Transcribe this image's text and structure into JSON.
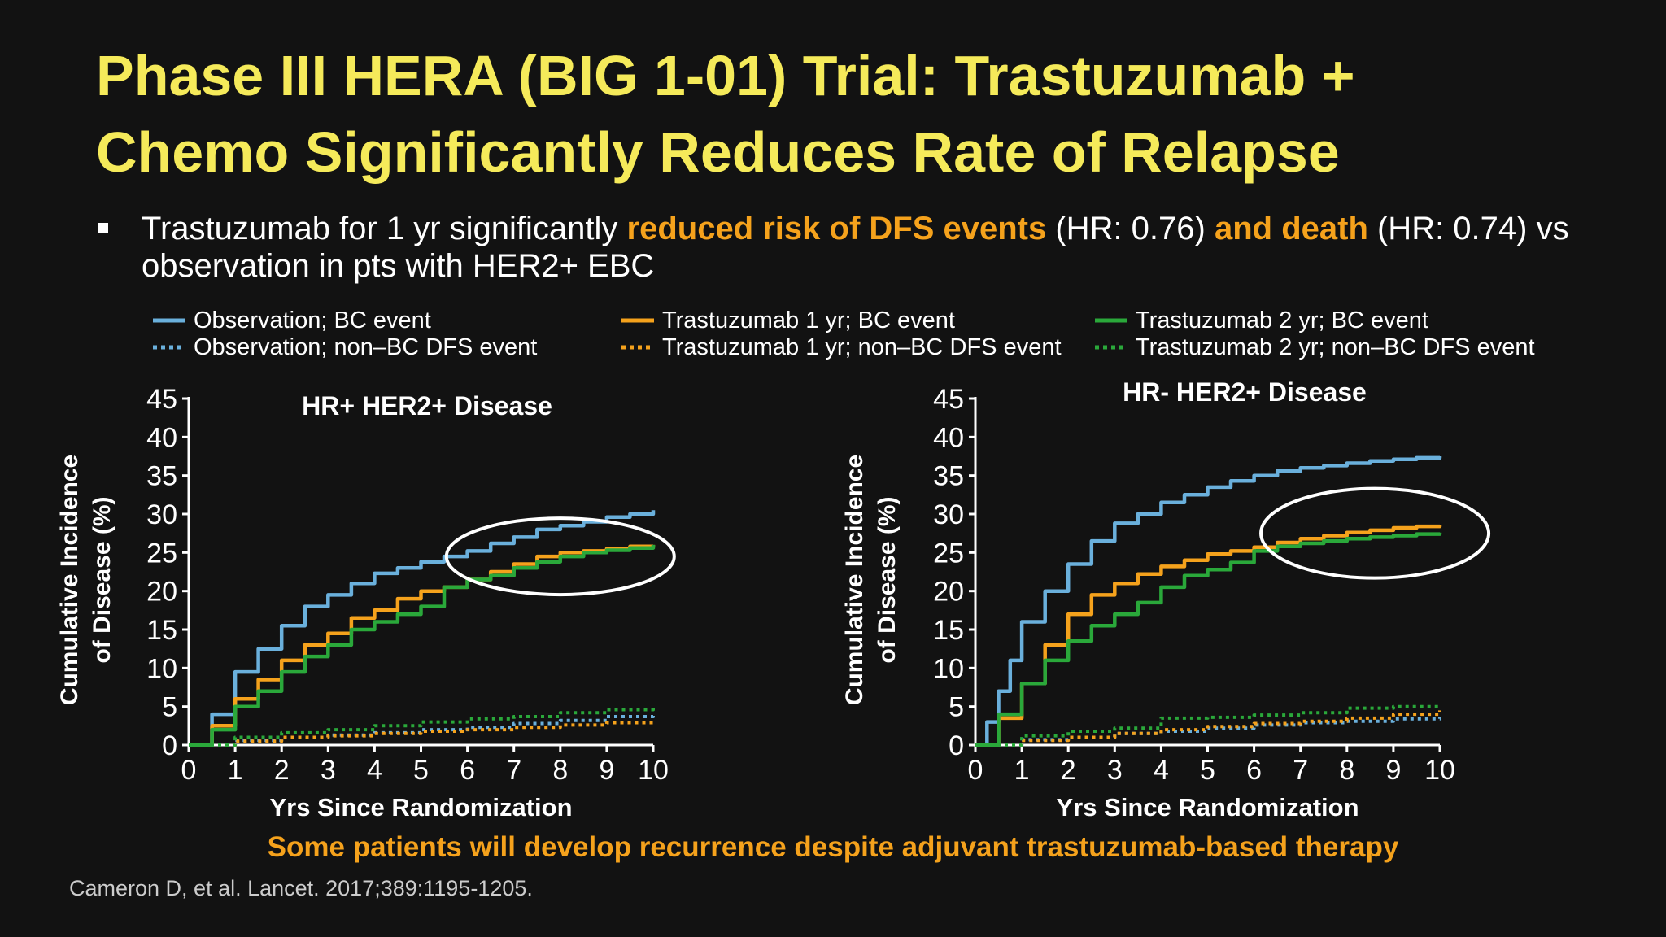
{
  "slide": {
    "title_line1": "Phase III HERA (BIG 1-01) Trial: Trastuzumab +",
    "title_line2": "Chemo Significantly Reduces Rate of Relapse",
    "bullet": {
      "part1": "Trastuzumab for 1 yr significantly ",
      "highlight1": "reduced risk of DFS events",
      "part2": " (HR: 0.76) ",
      "highlight2": "and death",
      "part3": " (HR: 0.74) vs observation in pts with HER2+ EBC"
    },
    "takeaway": "Some patients will develop recurrence despite adjuvant trastuzumab-based therapy",
    "citation": "Cameron D, et al. Lancet. 2017;389:1195-1205.",
    "colors": {
      "title": "#f5ea5a",
      "highlight": "#f5a21c",
      "observation": "#6ab0dc",
      "trastuzumab_1yr": "#f5a21c",
      "trastuzumab_2yr": "#2aa83a",
      "background": "#121212"
    }
  },
  "legend": [
    {
      "label": "Observation; BC event",
      "color": "#6ab0dc",
      "style": "solid"
    },
    {
      "label": "Observation; non–BC DFS event",
      "color": "#6ab0dc",
      "style": "dotted"
    },
    {
      "label": "Trastuzumab 1 yr; BC event",
      "color": "#f5a21c",
      "style": "solid"
    },
    {
      "label": "Trastuzumab 1 yr; non–BC DFS event",
      "color": "#f5a21c",
      "style": "dotted"
    },
    {
      "label": "Trastuzumab 2 yr; BC event",
      "color": "#2aa83a",
      "style": "solid"
    },
    {
      "label": "Trastuzumab 2 yr; non–BC DFS event",
      "color": "#2aa83a",
      "style": "dotted"
    }
  ],
  "chart_data": [
    {
      "type": "line",
      "title": "HR+ HER2+ Disease",
      "xlabel": "Yrs Since Randomization",
      "ylabel_line1": "Cumulative Incidence",
      "ylabel_line2": "of Disease (%)",
      "xlim": [
        0,
        10
      ],
      "ylim": [
        0,
        45
      ],
      "xticks": [
        0,
        1,
        2,
        3,
        4,
        5,
        6,
        7,
        8,
        9,
        10
      ],
      "yticks": [
        0,
        5,
        10,
        15,
        20,
        25,
        30,
        35,
        40,
        45
      ],
      "grid": false,
      "highlight_ellipse": {
        "x_center": 8.0,
        "y_center": 24.5
      },
      "series": [
        {
          "name": "Observation; BC event",
          "color": "#6ab0dc",
          "style": "solid",
          "x": [
            0,
            0.5,
            1,
            1.5,
            2,
            2.5,
            3,
            3.5,
            4,
            4.5,
            5,
            5.5,
            6,
            6.5,
            7,
            7.5,
            8,
            8.5,
            9,
            9.5,
            10
          ],
          "y": [
            0,
            4,
            9.5,
            12.5,
            15.5,
            18,
            19.5,
            21,
            22.3,
            23,
            23.8,
            24.5,
            25.2,
            26.2,
            27,
            28,
            28.5,
            29,
            29.6,
            30,
            30.5
          ]
        },
        {
          "name": "Trastuzumab 1 yr; BC event",
          "color": "#f5a21c",
          "style": "solid",
          "x": [
            0,
            0.5,
            1,
            1.5,
            2,
            2.5,
            3,
            3.5,
            4,
            4.5,
            5,
            5.5,
            6,
            6.5,
            7,
            7.5,
            8,
            8.5,
            9,
            9.5,
            10
          ],
          "y": [
            0,
            2.5,
            6,
            8.5,
            11,
            13,
            14.5,
            16.5,
            17.5,
            19,
            20,
            20.5,
            21.5,
            22.5,
            23.5,
            24.5,
            25,
            25.2,
            25.5,
            25.8,
            26
          ]
        },
        {
          "name": "Trastuzumab 2 yr; BC event",
          "color": "#2aa83a",
          "style": "solid",
          "x": [
            0,
            0.5,
            1,
            1.5,
            2,
            2.5,
            3,
            3.5,
            4,
            4.5,
            5,
            5.5,
            6,
            6.5,
            7,
            7.5,
            8,
            8.5,
            9,
            9.5,
            10
          ],
          "y": [
            0,
            2,
            5,
            7,
            9.5,
            11.5,
            13,
            15,
            16,
            17,
            18,
            20.5,
            21.5,
            22,
            23,
            23.8,
            24.5,
            25,
            25.3,
            25.6,
            26
          ]
        },
        {
          "name": "Observation; non–BC DFS event",
          "color": "#6ab0dc",
          "style": "dotted",
          "x": [
            0,
            1,
            2,
            3,
            4,
            5,
            6,
            7,
            8,
            9,
            10
          ],
          "y": [
            0,
            0.6,
            1,
            1.3,
            1.6,
            2,
            2.3,
            2.8,
            3.2,
            3.7,
            4.2
          ]
        },
        {
          "name": "Trastuzumab 1 yr; non–BC DFS event",
          "color": "#f5a21c",
          "style": "dotted",
          "x": [
            0,
            1,
            2,
            3,
            4,
            5,
            6,
            7,
            8,
            9,
            10
          ],
          "y": [
            0,
            0.5,
            1,
            1.2,
            1.5,
            1.8,
            2,
            2.3,
            2.6,
            2.9,
            3.2
          ]
        },
        {
          "name": "Trastuzumab 2 yr; non–BC DFS event",
          "color": "#2aa83a",
          "style": "dotted",
          "x": [
            0,
            1,
            2,
            3,
            4,
            5,
            6,
            7,
            8,
            9,
            10
          ],
          "y": [
            0,
            1,
            1.6,
            2,
            2.5,
            3,
            3.4,
            3.7,
            4.2,
            4.6,
            5
          ]
        }
      ]
    },
    {
      "type": "line",
      "title": "HR- HER2+ Disease",
      "xlabel": "Yrs Since Randomization",
      "ylabel_line1": "Cumulative Incidence",
      "ylabel_line2": "of Disease (%)",
      "xlim": [
        0,
        10
      ],
      "ylim": [
        0,
        45
      ],
      "xticks": [
        0,
        1,
        2,
        3,
        4,
        5,
        6,
        7,
        8,
        9,
        10
      ],
      "yticks": [
        0,
        5,
        10,
        15,
        20,
        25,
        30,
        35,
        40,
        45
      ],
      "grid": false,
      "highlight_ellipse": {
        "x_center": 8.6,
        "y_center": 27.5
      },
      "series": [
        {
          "name": "Observation; BC event",
          "color": "#6ab0dc",
          "style": "solid",
          "x": [
            0,
            0.25,
            0.5,
            0.75,
            1,
            1.5,
            2,
            2.5,
            3,
            3.5,
            4,
            4.5,
            5,
            5.5,
            6,
            6.5,
            7,
            7.5,
            8,
            8.5,
            9,
            9.5,
            10
          ],
          "y": [
            0,
            3,
            7,
            11,
            16,
            20,
            23.5,
            26.5,
            28.8,
            30,
            31.5,
            32.5,
            33.5,
            34.3,
            35,
            35.6,
            36,
            36.3,
            36.6,
            36.9,
            37.1,
            37.3,
            37.5
          ]
        },
        {
          "name": "Trastuzumab 1 yr; BC event",
          "color": "#f5a21c",
          "style": "solid",
          "x": [
            0,
            0.5,
            1,
            1.5,
            2,
            2.5,
            3,
            3.5,
            4,
            4.5,
            5,
            5.5,
            6,
            6.5,
            7,
            7.5,
            8,
            8.5,
            9,
            9.5,
            10
          ],
          "y": [
            0,
            3.5,
            8,
            13,
            17,
            19.5,
            21,
            22.2,
            23.2,
            24,
            24.8,
            25.2,
            25.7,
            26.3,
            26.8,
            27.2,
            27.6,
            27.9,
            28.2,
            28.4,
            28.6
          ]
        },
        {
          "name": "Trastuzumab 2 yr; BC event",
          "color": "#2aa83a",
          "style": "solid",
          "x": [
            0,
            0.5,
            1,
            1.5,
            2,
            2.5,
            3,
            3.5,
            4,
            4.5,
            5,
            5.5,
            6,
            6.5,
            7,
            7.5,
            8,
            8.5,
            9,
            9.5,
            10
          ],
          "y": [
            0,
            4,
            8,
            11,
            13.5,
            15.5,
            17,
            18.5,
            20.5,
            22,
            22.8,
            23.7,
            25.2,
            25.8,
            26.2,
            26.5,
            26.8,
            27,
            27.2,
            27.4,
            27.6
          ]
        },
        {
          "name": "Observation; non–BC DFS event",
          "color": "#6ab0dc",
          "style": "dotted",
          "x": [
            0,
            1,
            2,
            3,
            4,
            5,
            6,
            7,
            8,
            9,
            10
          ],
          "y": [
            0,
            0.7,
            1,
            1.5,
            1.8,
            2.2,
            2.6,
            2.9,
            3.1,
            3.4,
            3.7
          ]
        },
        {
          "name": "Trastuzumab 1 yr; non–BC DFS event",
          "color": "#f5a21c",
          "style": "dotted",
          "x": [
            0,
            1,
            2,
            3,
            4,
            5,
            6,
            7,
            8,
            9,
            10
          ],
          "y": [
            0,
            0.6,
            1,
            1.5,
            2,
            2.4,
            2.8,
            3.1,
            3.5,
            4,
            4.5
          ]
        },
        {
          "name": "Trastuzumab 2 yr; non–BC DFS event",
          "color": "#2aa83a",
          "style": "dotted",
          "x": [
            0,
            1,
            2,
            3,
            4,
            5,
            6,
            7,
            8,
            9,
            10
          ],
          "y": [
            0,
            1.2,
            1.8,
            2.2,
            3.5,
            3.6,
            3.9,
            4.2,
            4.8,
            5,
            5.2
          ]
        }
      ]
    }
  ]
}
